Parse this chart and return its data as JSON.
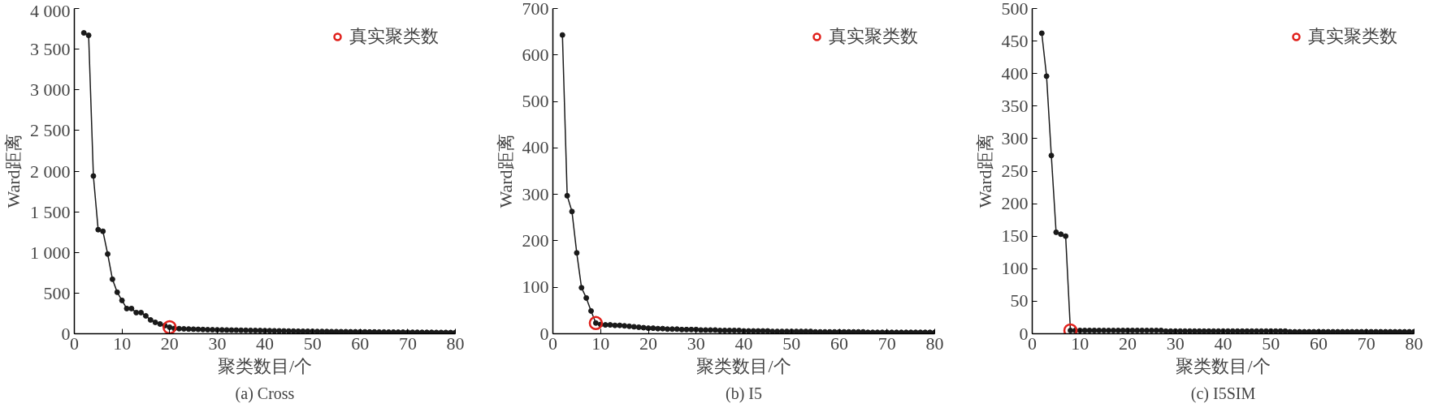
{
  "chart_data": [
    {
      "type": "line",
      "title": "(a) Cross",
      "xlabel": "聚类数目/个",
      "ylabel": "Ward距离",
      "xlim": [
        0,
        80
      ],
      "xticks": [
        0,
        10,
        20,
        30,
        40,
        50,
        60,
        70,
        80
      ],
      "ylim": [
        0,
        4000
      ],
      "yticks": [
        0,
        500,
        {
          "value": 1000,
          "label": "1 000"
        },
        {
          "value": 1500,
          "label": "1 500"
        },
        {
          "value": 2000,
          "label": "2 000"
        },
        {
          "value": 2500,
          "label": "2 500"
        },
        {
          "value": 3000,
          "label": "3 000"
        },
        {
          "value": 3500,
          "label": "3 500"
        },
        {
          "value": 4000,
          "label": "4 000"
        }
      ],
      "grid": false,
      "legend": "top right",
      "marker": "circle",
      "line_style": "solid",
      "series": [
        {
          "color": "#1a1a1a",
          "x": [
            2,
            3,
            4,
            5,
            6,
            7,
            8,
            9,
            10,
            11,
            12,
            13,
            14,
            15,
            16,
            17,
            18,
            19,
            20,
            21,
            22,
            23,
            24,
            25,
            26,
            27,
            28,
            29,
            30,
            31,
            32,
            33,
            34,
            35,
            36,
            37,
            38,
            39,
            40,
            41,
            42,
            43,
            44,
            45,
            46,
            47,
            48,
            49,
            50,
            51,
            52,
            53,
            54,
            55,
            56,
            57,
            58,
            59,
            60,
            61,
            62,
            63,
            64,
            65,
            66,
            67,
            68,
            69,
            70,
            71,
            72,
            73,
            74,
            75,
            76,
            77,
            78,
            79,
            80
          ],
          "values": [
            3700,
            3670,
            1940,
            1280,
            1260,
            980,
            670,
            510,
            410,
            310,
            310,
            260,
            260,
            220,
            170,
            140,
            120,
            100,
            80,
            65,
            62,
            60,
            58,
            56,
            54,
            52,
            50,
            49,
            48,
            47,
            46,
            45,
            44,
            43,
            42,
            41,
            40,
            39,
            38,
            37,
            36,
            35,
            34,
            33,
            32,
            31,
            30,
            30,
            29,
            28,
            28,
            27,
            26,
            26,
            25,
            25,
            24,
            24,
            23,
            23,
            22,
            22,
            21,
            21,
            20,
            20,
            19,
            19,
            18,
            18,
            18,
            17,
            17,
            17,
            16,
            16,
            16,
            15,
            15
          ]
        },
        {
          "type": "scatter",
          "name": "真实聚类数",
          "color": "#e0201b",
          "x": [
            20
          ],
          "values": [
            80
          ]
        }
      ]
    },
    {
      "type": "line",
      "title": "(b) I5",
      "xlabel": "聚类数目/个",
      "ylabel": "Ward距离",
      "xlim": [
        0,
        80
      ],
      "xticks": [
        0,
        10,
        20,
        30,
        40,
        50,
        60,
        70,
        80
      ],
      "ylim": [
        0,
        700
      ],
      "yticks": [
        0,
        100,
        200,
        300,
        400,
        500,
        600,
        700
      ],
      "grid": false,
      "legend": "top right",
      "marker": "circle",
      "line_style": "solid",
      "series": [
        {
          "color": "#1a1a1a",
          "x": [
            2,
            3,
            4,
            5,
            6,
            7,
            8,
            9,
            10,
            11,
            12,
            13,
            14,
            15,
            16,
            17,
            18,
            19,
            20,
            21,
            22,
            23,
            24,
            25,
            26,
            27,
            28,
            29,
            30,
            31,
            32,
            33,
            34,
            35,
            36,
            37,
            38,
            39,
            40,
            41,
            42,
            43,
            44,
            45,
            46,
            47,
            48,
            49,
            50,
            51,
            52,
            53,
            54,
            55,
            56,
            57,
            58,
            59,
            60,
            61,
            62,
            63,
            64,
            65,
            66,
            67,
            68,
            69,
            70,
            71,
            72,
            73,
            74,
            75,
            76,
            77,
            78,
            79,
            80
          ],
          "values": [
            643,
            297,
            263,
            174,
            99,
            77,
            49,
            23,
            20,
            19,
            19,
            18,
            18,
            17,
            16,
            15,
            14,
            13,
            12,
            12,
            11,
            11,
            10,
            10,
            10,
            9,
            9,
            9,
            9,
            8,
            8,
            8,
            8,
            7,
            7,
            7,
            7,
            7,
            6,
            6,
            6,
            6,
            6,
            6,
            5,
            5,
            5,
            5,
            5,
            5,
            5,
            5,
            5,
            4,
            4,
            4,
            4,
            4,
            4,
            4,
            4,
            4,
            4,
            4,
            3,
            3,
            3,
            3,
            3,
            3,
            3,
            3,
            3,
            3,
            3,
            3,
            3,
            3,
            3
          ]
        },
        {
          "type": "scatter",
          "name": "真实聚类数",
          "color": "#e0201b",
          "x": [
            9
          ],
          "values": [
            23
          ]
        }
      ]
    },
    {
      "type": "line",
      "title": "(c) I5SIM",
      "xlabel": "聚类数目/个",
      "ylabel": "Ward距离",
      "xlim": [
        0,
        80
      ],
      "xticks": [
        0,
        10,
        20,
        30,
        40,
        50,
        60,
        70,
        80
      ],
      "ylim": [
        0,
        500
      ],
      "yticks": [
        0,
        50,
        100,
        150,
        200,
        250,
        300,
        350,
        400,
        450,
        500
      ],
      "grid": false,
      "legend": "top right",
      "marker": "circle",
      "line_style": "solid",
      "series": [
        {
          "color": "#1a1a1a",
          "x": [
            2,
            3,
            4,
            5,
            6,
            7,
            8,
            9,
            10,
            11,
            12,
            13,
            14,
            15,
            16,
            17,
            18,
            19,
            20,
            21,
            22,
            23,
            24,
            25,
            26,
            27,
            28,
            29,
            30,
            31,
            32,
            33,
            34,
            35,
            36,
            37,
            38,
            39,
            40,
            41,
            42,
            43,
            44,
            45,
            46,
            47,
            48,
            49,
            50,
            51,
            52,
            53,
            54,
            55,
            56,
            57,
            58,
            59,
            60,
            61,
            62,
            63,
            64,
            65,
            66,
            67,
            68,
            69,
            70,
            71,
            72,
            73,
            74,
            75,
            76,
            77,
            78,
            79,
            80
          ],
          "values": [
            462,
            396,
            274,
            156,
            153,
            150,
            5,
            5,
            5,
            5,
            5,
            5,
            5,
            5,
            5,
            5,
            5,
            5,
            5,
            5,
            5,
            5,
            5,
            5,
            5,
            5,
            4,
            4,
            4,
            4,
            4,
            4,
            4,
            4,
            4,
            4,
            4,
            4,
            4,
            4,
            4,
            4,
            4,
            4,
            4,
            4,
            4,
            4,
            4,
            4,
            4,
            4,
            3,
            3,
            3,
            3,
            3,
            3,
            3,
            3,
            3,
            3,
            3,
            3,
            3,
            3,
            3,
            3,
            3,
            3,
            3,
            3,
            3,
            3,
            3,
            3,
            3,
            3,
            3
          ]
        },
        {
          "type": "scatter",
          "name": "真实聚类数",
          "color": "#e0201b",
          "x": [
            8
          ],
          "values": [
            5
          ]
        }
      ]
    }
  ]
}
